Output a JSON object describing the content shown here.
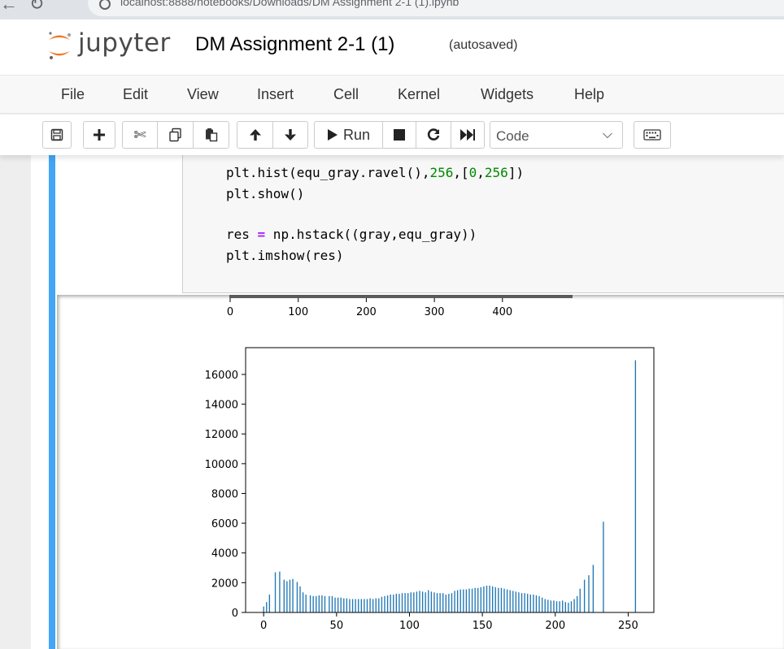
{
  "browser": {
    "address_text": "localhost:8888/notebooks/Downloads/DM Assignment 2-1 (1).ipynb"
  },
  "header": {
    "logo_text": "jupyter",
    "notebook_name": "DM Assignment 2-1 (1)",
    "autosave_status": "(autosaved)"
  },
  "menubar": {
    "items": [
      "File",
      "Edit",
      "View",
      "Insert",
      "Cell",
      "Kernel",
      "Widgets",
      "Help"
    ]
  },
  "toolbar": {
    "run_label": "Run",
    "cell_type": "Code",
    "icons": [
      "save-icon",
      "plus-icon",
      "scissors-icon",
      "copy-icon",
      "paste-icon",
      "arrow-up-icon",
      "arrow-down-icon",
      "play-icon",
      "stop-icon",
      "restart-icon",
      "fast-forward-icon",
      "keyboard-icon"
    ]
  },
  "code": {
    "lines": [
      "plt.hist(equ_gray.ravel(),256,[0,256])",
      "plt.show()",
      "",
      "res = np.hstack((gray,equ_gray))",
      "plt.imshow(res)"
    ]
  },
  "colors": {
    "cell_selected_bar": "#42a5f5",
    "bar_color": "#1f77b4",
    "code_number": "#008800",
    "code_operator": "#aa22ff"
  },
  "chart_data": [
    {
      "type": "image",
      "xticks": [
        "0",
        "100",
        "200",
        "300",
        "400"
      ]
    },
    {
      "type": "bar",
      "xlim": [
        -12,
        268
      ],
      "ylim": [
        0,
        17800
      ],
      "xticks": [
        "0",
        "50",
        "100",
        "150",
        "200",
        "250"
      ],
      "yticks": [
        "0",
        "2000",
        "4000",
        "6000",
        "8000",
        "10000",
        "12000",
        "14000",
        "16000"
      ],
      "x": [
        0,
        2,
        4,
        8,
        11,
        14,
        16,
        18,
        20,
        23,
        25,
        27,
        29,
        32,
        34,
        36,
        38,
        40,
        42,
        45,
        47,
        49,
        51,
        53,
        55,
        57,
        59,
        61,
        63,
        65,
        67,
        69,
        71,
        73,
        75,
        77,
        79,
        81,
        83,
        85,
        87,
        89,
        91,
        93,
        95,
        97,
        99,
        101,
        103,
        105,
        107,
        109,
        111,
        113,
        115,
        117,
        119,
        121,
        123,
        125,
        127,
        129,
        131,
        133,
        135,
        137,
        139,
        141,
        143,
        145,
        147,
        149,
        151,
        153,
        155,
        157,
        159,
        161,
        163,
        165,
        167,
        169,
        171,
        173,
        175,
        177,
        179,
        181,
        183,
        185,
        187,
        189,
        191,
        193,
        195,
        197,
        199,
        201,
        203,
        205,
        207,
        209,
        211,
        213,
        215,
        217,
        220,
        223,
        226,
        233,
        255
      ],
      "values": [
        400,
        700,
        1200,
        2700,
        2750,
        2200,
        2100,
        2200,
        2250,
        2050,
        1750,
        1350,
        1200,
        1150,
        1100,
        1100,
        1150,
        1150,
        1100,
        1100,
        1100,
        1000,
        1000,
        1000,
        950,
        950,
        900,
        900,
        900,
        900,
        900,
        900,
        900,
        950,
        900,
        950,
        950,
        1050,
        1100,
        1150,
        1200,
        1200,
        1250,
        1250,
        1300,
        1300,
        1300,
        1350,
        1350,
        1400,
        1450,
        1400,
        1350,
        1500,
        1400,
        1350,
        1300,
        1300,
        1300,
        1200,
        1250,
        1300,
        1450,
        1500,
        1550,
        1550,
        1550,
        1600,
        1600,
        1650,
        1650,
        1700,
        1750,
        1800,
        1800,
        1750,
        1700,
        1650,
        1650,
        1600,
        1550,
        1500,
        1450,
        1400,
        1350,
        1300,
        1300,
        1250,
        1200,
        1200,
        1150,
        1100,
        1000,
        900,
        850,
        800,
        800,
        750,
        750,
        800,
        700,
        650,
        750,
        900,
        1100,
        1600,
        2200,
        2500,
        3200,
        6100,
        16950
      ]
    }
  ]
}
